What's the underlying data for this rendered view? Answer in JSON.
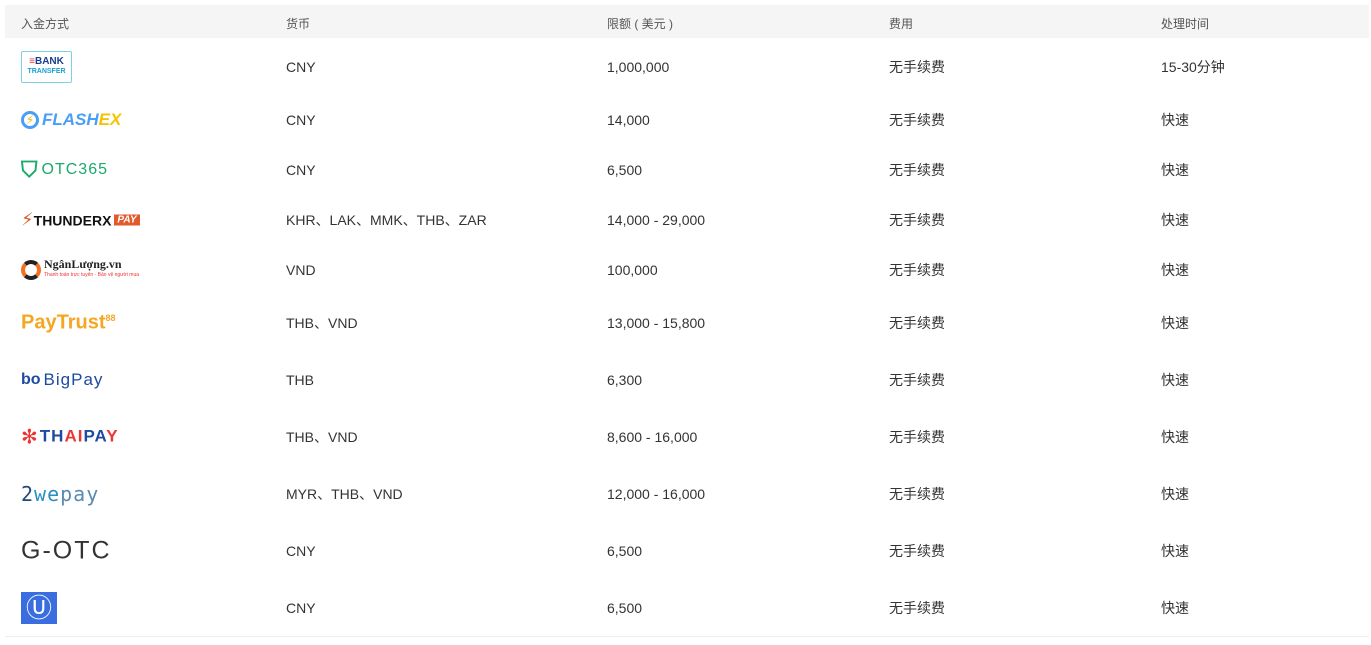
{
  "headers": [
    "入金方式",
    "货币",
    "限额 ( 美元 )",
    "费用",
    "处理时间"
  ],
  "rows": [
    {
      "logo": "BANK TRANSFER",
      "logo_icon": "bank-transfer-logo",
      "currency": "CNY",
      "limit": "1,000,000",
      "fee": "无手续费",
      "time": "15-30分钟"
    },
    {
      "logo": "FLASHEX",
      "logo_icon": "flashex-logo",
      "currency": "CNY",
      "limit": "14,000",
      "fee": "无手续费",
      "time": "快速"
    },
    {
      "logo": "OTC365",
      "logo_icon": "otc365-logo",
      "currency": "CNY",
      "limit": "6,500",
      "fee": "无手续费",
      "time": "快速"
    },
    {
      "logo": "THUNDERX PAY",
      "logo_icon": "thunderx-pay-logo",
      "currency": "KHR、LAK、MMK、THB、ZAR",
      "limit": "14,000 - 29,000",
      "fee": "无手续费",
      "time": "快速"
    },
    {
      "logo": "NgânLượng.vn",
      "logo_icon": "nganluong-logo",
      "currency": "VND",
      "limit": "100,000",
      "fee": "无手续费",
      "time": "快速"
    },
    {
      "logo": "PayTrust88",
      "logo_icon": "paytrust88-logo",
      "currency": "THB、VND",
      "limit": "13,000 - 15,800",
      "fee": "无手续费",
      "time": "快速"
    },
    {
      "logo": "BigPay",
      "logo_icon": "bigpay-logo",
      "currency": "THB",
      "limit": "6,300",
      "fee": "无手续费",
      "time": "快速"
    },
    {
      "logo": "THAIPAY",
      "logo_icon": "thaipay-logo",
      "currency": "THB、VND",
      "limit": "8,600 - 16,000",
      "fee": "无手续费",
      "time": "快速"
    },
    {
      "logo": "2wepay",
      "logo_icon": "2wepay-logo",
      "currency": "MYR、THB、VND",
      "limit": "12,000 - 16,000",
      "fee": "无手续费",
      "time": "快速"
    },
    {
      "logo": "G-OTC",
      "logo_icon": "g-otc-logo",
      "currency": "CNY",
      "limit": "6,500",
      "fee": "无手续费",
      "time": "快速"
    },
    {
      "logo": "U",
      "logo_icon": "u-logo",
      "currency": "CNY",
      "limit": "6,500",
      "fee": "无手续费",
      "time": "快速"
    }
  ]
}
